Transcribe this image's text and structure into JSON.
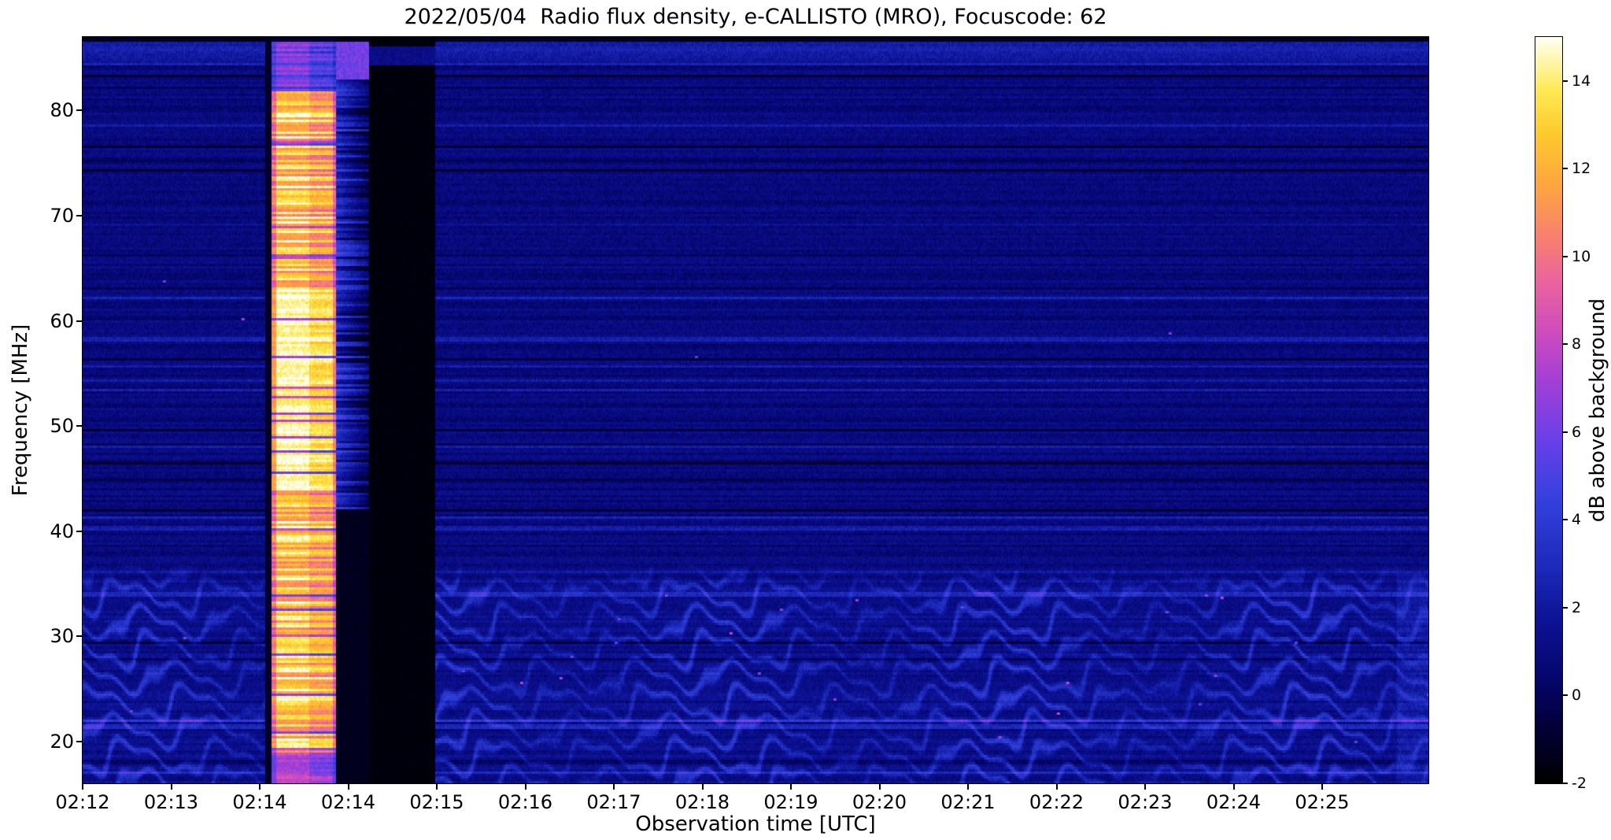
{
  "chart_data": {
    "type": "heatmap",
    "title": "2022/05/04  Radio flux density, e-CALLISTO (MRO), Focuscode: 62",
    "xlabel": "Observation time [UTC]",
    "ylabel": "Frequency [MHz]",
    "colorbar_label": "dB above background",
    "x_ticks": [
      "02:12",
      "02:13",
      "02:14",
      "02:14",
      "02:15",
      "02:16",
      "02:17",
      "02:18",
      "02:19",
      "02:20",
      "02:21",
      "02:22",
      "02:23",
      "02:24",
      "02:25"
    ],
    "x_span_minutes": 15.2,
    "x_tick_interval_minutes": 1,
    "y_ticks": [
      80,
      70,
      60,
      50,
      40,
      30,
      20
    ],
    "y_range": [
      16,
      87
    ],
    "value_range": [
      -2,
      15
    ],
    "colorbar_ticks": [
      14,
      12,
      10,
      8,
      6,
      4,
      2,
      0,
      -2
    ],
    "grid": false,
    "colormap": [
      [
        0.0,
        "#000000"
      ],
      [
        0.08,
        "#02003c"
      ],
      [
        0.14,
        "#05056e"
      ],
      [
        0.22,
        "#0d1396"
      ],
      [
        0.3,
        "#1f2cbe"
      ],
      [
        0.38,
        "#3440dd"
      ],
      [
        0.46,
        "#6a3fe8"
      ],
      [
        0.54,
        "#a43fd6"
      ],
      [
        0.6,
        "#cc4ac0"
      ],
      [
        0.67,
        "#ea62a0"
      ],
      [
        0.73,
        "#f87f70"
      ],
      [
        0.8,
        "#fda53f"
      ],
      [
        0.87,
        "#fdc92d"
      ],
      [
        0.93,
        "#feea55"
      ],
      [
        1.0,
        "#fffff2"
      ]
    ],
    "features": {
      "noise_db": 0.9,
      "channel_line_probability": 0.06,
      "top_black_band_min_mhz": 86.6,
      "blue_band_mhz": [
        84.2,
        86.6
      ],
      "bright_channels_mhz": [
        58.3,
        48.0,
        40.3,
        33.9,
        21.4
      ],
      "fringes": {
        "max_freq_mhz": 37,
        "spacing_mhz": 2.55,
        "undulation_period_min": 1.05,
        "undulation_amp_mhz": 1.35,
        "amplitude_db": 1.55,
        "base_lift_db": 0.45
      },
      "pre_burst_dark_column_min": [
        2.06,
        2.13
      ],
      "burst": {
        "start_min": 2.13,
        "end_min": 2.87,
        "typical_db": [
          10.5,
          15.1
        ],
        "white_core_mhz": [
          44,
          63
        ],
        "low_rows_db": [
          6,
          8.5
        ],
        "bottom_pink_max_mhz": 19
      },
      "decay_column_min": [
        2.87,
        3.23
      ],
      "gap": {
        "start_min": 3.23,
        "end_min": 3.98,
        "db": -1.85,
        "blue_rows_mhz": [
          84.2,
          86.2
        ]
      },
      "rfi_dots": {
        "count": 30,
        "db": [
          5.5,
          8.5
        ]
      },
      "right_edge_bright_after_min": 14.85
    }
  }
}
